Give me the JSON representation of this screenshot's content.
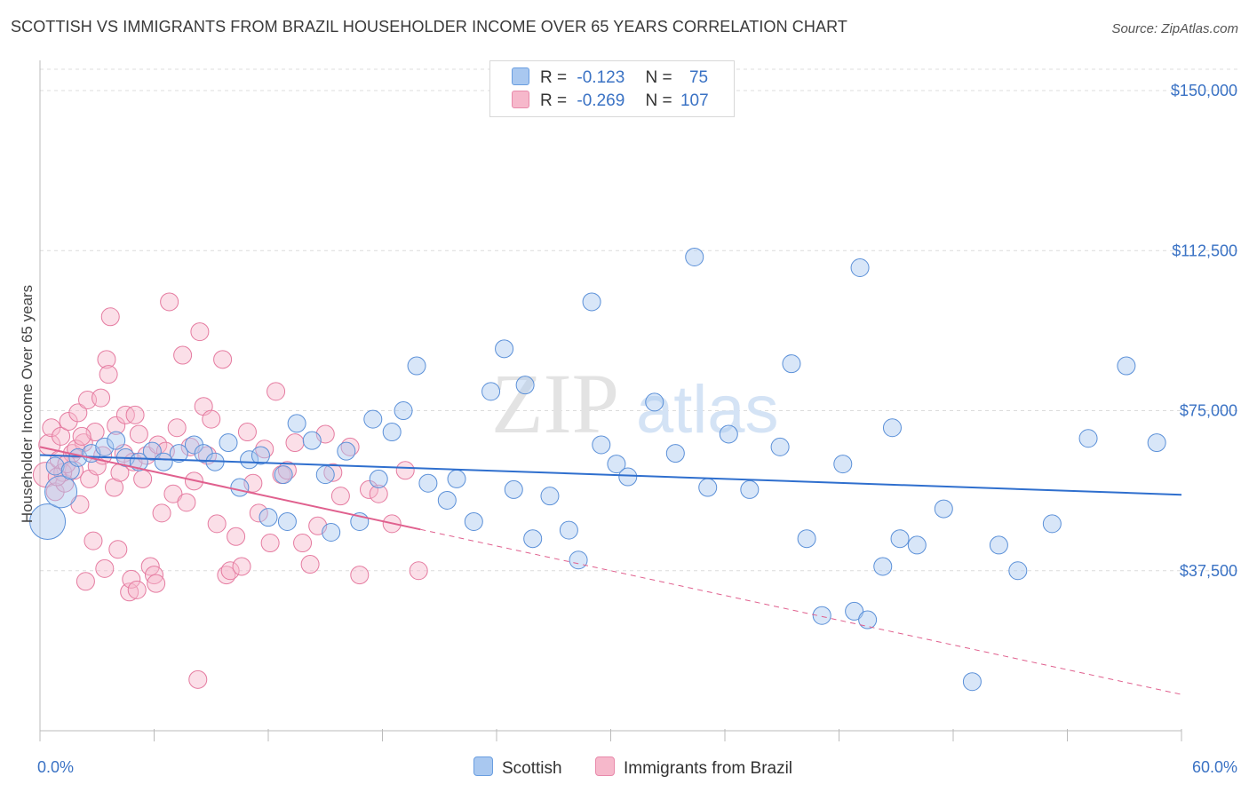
{
  "title": "SCOTTISH VS IMMIGRANTS FROM BRAZIL HOUSEHOLDER INCOME OVER 65 YEARS CORRELATION CHART",
  "source": "Source: ZipAtlas.com",
  "watermark": {
    "zip": "ZIP",
    "atlas": "atlas"
  },
  "legend": {
    "rows": [
      {
        "r_label": "R =",
        "r_value": "-0.123",
        "n_label": "N =",
        "n_value": "75",
        "color": "#a9c8f0"
      },
      {
        "r_label": "R =",
        "r_value": "-0.269",
        "n_label": "N =",
        "n_value": "107",
        "color": "#f6b8cb"
      }
    ]
  },
  "bottom_legend": {
    "series1": "Scottish",
    "series2": "Immigrants from Brazil"
  },
  "chart_data": {
    "type": "scatter",
    "xlabel": "",
    "ylabel": "Householder Income Over 65 years",
    "xlim": [
      0,
      60
    ],
    "ylim": [
      0,
      155000
    ],
    "x_tick_labels": [
      "0.0%",
      "60.0%"
    ],
    "y_ticks": [
      37500,
      75000,
      112500,
      150000
    ],
    "y_tick_labels": [
      "$37,500",
      "$75,000",
      "$112,500",
      "$150,000"
    ],
    "grid": true,
    "legend_position": "top-center",
    "colors": {
      "scottish_fill": "#a9c8f0",
      "scottish_stroke": "#5b90d8",
      "scottish_line": "#2f6fce",
      "brazil_fill": "#f6b8cb",
      "brazil_stroke": "#e57ba0",
      "brazil_line": "#e0608e"
    },
    "series": [
      {
        "name": "Scottish",
        "trend": {
          "x": [
            0,
            60
          ],
          "y": [
            64600,
            55300
          ],
          "solid_to": 60
        },
        "points": [
          [
            0.4,
            49000,
            20
          ],
          [
            1.1,
            56000,
            18
          ],
          [
            0.8,
            62000,
            10
          ],
          [
            1.6,
            61000,
            10
          ],
          [
            2.0,
            64000,
            10
          ],
          [
            2.7,
            65000,
            10
          ],
          [
            3.4,
            66500,
            10
          ],
          [
            4.0,
            68000,
            10
          ],
          [
            4.5,
            64000,
            10
          ],
          [
            5.2,
            63000,
            10
          ],
          [
            5.9,
            65500,
            10
          ],
          [
            6.5,
            63000,
            10
          ],
          [
            7.3,
            65000,
            10
          ],
          [
            8.1,
            67000,
            10
          ],
          [
            8.6,
            65000,
            10
          ],
          [
            9.2,
            63000,
            10
          ],
          [
            9.9,
            67500,
            10
          ],
          [
            10.5,
            57000,
            10
          ],
          [
            11.0,
            63500,
            10
          ],
          [
            11.6,
            64500,
            10
          ],
          [
            12.0,
            50000,
            10
          ],
          [
            12.8,
            60000,
            10
          ],
          [
            13.0,
            49000,
            10
          ],
          [
            13.5,
            72000,
            10
          ],
          [
            14.3,
            68000,
            10
          ],
          [
            15.0,
            60000,
            10
          ],
          [
            15.3,
            46500,
            10
          ],
          [
            16.1,
            65500,
            10
          ],
          [
            16.8,
            49000,
            10
          ],
          [
            17.5,
            73000,
            10
          ],
          [
            17.8,
            59000,
            10
          ],
          [
            18.5,
            70000,
            10
          ],
          [
            19.1,
            75000,
            10
          ],
          [
            19.8,
            85500,
            10
          ],
          [
            20.4,
            58000,
            10
          ],
          [
            21.4,
            54000,
            10
          ],
          [
            21.9,
            59000,
            10
          ],
          [
            22.8,
            49000,
            10
          ],
          [
            23.7,
            79500,
            10
          ],
          [
            24.4,
            89500,
            10
          ],
          [
            24.9,
            56500,
            10
          ],
          [
            25.5,
            81000,
            10
          ],
          [
            25.9,
            45000,
            10
          ],
          [
            26.8,
            55000,
            10
          ],
          [
            27.8,
            47000,
            10
          ],
          [
            28.3,
            40000,
            10
          ],
          [
            29.0,
            100500,
            10
          ],
          [
            29.5,
            67000,
            10
          ],
          [
            30.3,
            62500,
            10
          ],
          [
            30.9,
            59500,
            10
          ],
          [
            32.3,
            77000,
            10
          ],
          [
            33.4,
            65000,
            10
          ],
          [
            34.4,
            111000,
            10
          ],
          [
            35.1,
            57000,
            10
          ],
          [
            36.2,
            69500,
            10
          ],
          [
            37.3,
            56500,
            10
          ],
          [
            38.9,
            66500,
            10
          ],
          [
            39.5,
            86000,
            10
          ],
          [
            40.3,
            45000,
            10
          ],
          [
            41.1,
            27000,
            10
          ],
          [
            42.2,
            62500,
            10
          ],
          [
            42.8,
            28000,
            10
          ],
          [
            43.1,
            108500,
            10
          ],
          [
            43.5,
            26000,
            10
          ],
          [
            44.3,
            38500,
            10
          ],
          [
            44.8,
            71000,
            10
          ],
          [
            45.2,
            45000,
            10
          ],
          [
            46.1,
            43500,
            10
          ],
          [
            47.5,
            52000,
            10
          ],
          [
            49.0,
            11500,
            10
          ],
          [
            50.4,
            43500,
            10
          ],
          [
            51.4,
            37500,
            10
          ],
          [
            53.2,
            48500,
            10
          ],
          [
            55.1,
            68500,
            10
          ],
          [
            57.1,
            85500,
            10
          ],
          [
            58.7,
            67500,
            10
          ]
        ]
      },
      {
        "name": "Immigrants from Brazil",
        "trend": {
          "x": [
            0,
            60
          ],
          "y": [
            66500,
            8500
          ],
          "solid_to": 20
        },
        "points": [
          [
            0.3,
            60000,
            14
          ],
          [
            0.5,
            67000,
            12
          ],
          [
            0.6,
            71000,
            10
          ],
          [
            0.8,
            56000,
            10
          ],
          [
            1.0,
            63500,
            10
          ],
          [
            1.1,
            69000,
            10
          ],
          [
            1.3,
            58000,
            10
          ],
          [
            1.5,
            72500,
            10
          ],
          [
            1.7,
            65000,
            10
          ],
          [
            1.8,
            61000,
            10
          ],
          [
            2.0,
            74500,
            10
          ],
          [
            2.1,
            53000,
            10
          ],
          [
            2.3,
            67500,
            10
          ],
          [
            2.5,
            77500,
            10
          ],
          [
            2.6,
            59000,
            10
          ],
          [
            2.8,
            44500,
            10
          ],
          [
            2.9,
            70000,
            10
          ],
          [
            3.0,
            62000,
            10
          ],
          [
            3.2,
            78000,
            10
          ],
          [
            3.3,
            64500,
            10
          ],
          [
            3.5,
            87000,
            10
          ],
          [
            3.6,
            83500,
            10
          ],
          [
            3.7,
            97000,
            10
          ],
          [
            3.9,
            57000,
            10
          ],
          [
            4.0,
            71500,
            10
          ],
          [
            4.1,
            42500,
            10
          ],
          [
            4.2,
            60500,
            10
          ],
          [
            4.4,
            65000,
            10
          ],
          [
            4.5,
            74000,
            10
          ],
          [
            4.7,
            32500,
            10
          ],
          [
            4.8,
            35500,
            10
          ],
          [
            4.9,
            63000,
            10
          ],
          [
            5.0,
            74000,
            10
          ],
          [
            5.2,
            69500,
            10
          ],
          [
            5.4,
            59000,
            10
          ],
          [
            5.6,
            64500,
            10
          ],
          [
            5.8,
            38500,
            10
          ],
          [
            6.0,
            36500,
            10
          ],
          [
            6.2,
            67000,
            10
          ],
          [
            6.4,
            51000,
            10
          ],
          [
            6.6,
            65500,
            10
          ],
          [
            6.8,
            100500,
            10
          ],
          [
            7.0,
            55500,
            10
          ],
          [
            7.2,
            71000,
            10
          ],
          [
            7.5,
            88000,
            10
          ],
          [
            7.7,
            53500,
            10
          ],
          [
            7.9,
            66500,
            10
          ],
          [
            8.1,
            58500,
            10
          ],
          [
            8.4,
            93500,
            10
          ],
          [
            8.6,
            76000,
            10
          ],
          [
            8.8,
            64500,
            10
          ],
          [
            9.0,
            73000,
            10
          ],
          [
            9.3,
            48500,
            10
          ],
          [
            9.6,
            87000,
            10
          ],
          [
            9.8,
            36500,
            10
          ],
          [
            10.0,
            37500,
            10
          ],
          [
            10.3,
            45500,
            10
          ],
          [
            10.6,
            38500,
            10
          ],
          [
            10.9,
            70000,
            10
          ],
          [
            11.2,
            58000,
            10
          ],
          [
            11.5,
            51000,
            10
          ],
          [
            11.8,
            66000,
            10
          ],
          [
            12.1,
            44000,
            10
          ],
          [
            12.4,
            79500,
            10
          ],
          [
            12.7,
            60000,
            10
          ],
          [
            13.0,
            61000,
            10
          ],
          [
            13.4,
            67500,
            10
          ],
          [
            13.8,
            44000,
            10
          ],
          [
            14.2,
            39000,
            10
          ],
          [
            14.6,
            48000,
            10
          ],
          [
            15.0,
            69500,
            10
          ],
          [
            15.4,
            60500,
            10
          ],
          [
            15.8,
            55000,
            10
          ],
          [
            16.3,
            66500,
            10
          ],
          [
            16.8,
            36500,
            10
          ],
          [
            17.3,
            56500,
            10
          ],
          [
            17.8,
            55500,
            10
          ],
          [
            18.5,
            48500,
            10
          ],
          [
            19.2,
            61000,
            10
          ],
          [
            19.9,
            37500,
            10
          ],
          [
            2.4,
            35000,
            10
          ],
          [
            3.4,
            38000,
            10
          ],
          [
            5.1,
            33000,
            10
          ],
          [
            6.1,
            34500,
            10
          ],
          [
            8.3,
            12000,
            10
          ],
          [
            1.2,
            60500,
            10
          ],
          [
            1.9,
            66000,
            10
          ],
          [
            2.2,
            69000,
            10
          ],
          [
            0.9,
            59500,
            10
          ],
          [
            1.4,
            62500,
            10
          ]
        ]
      }
    ]
  }
}
